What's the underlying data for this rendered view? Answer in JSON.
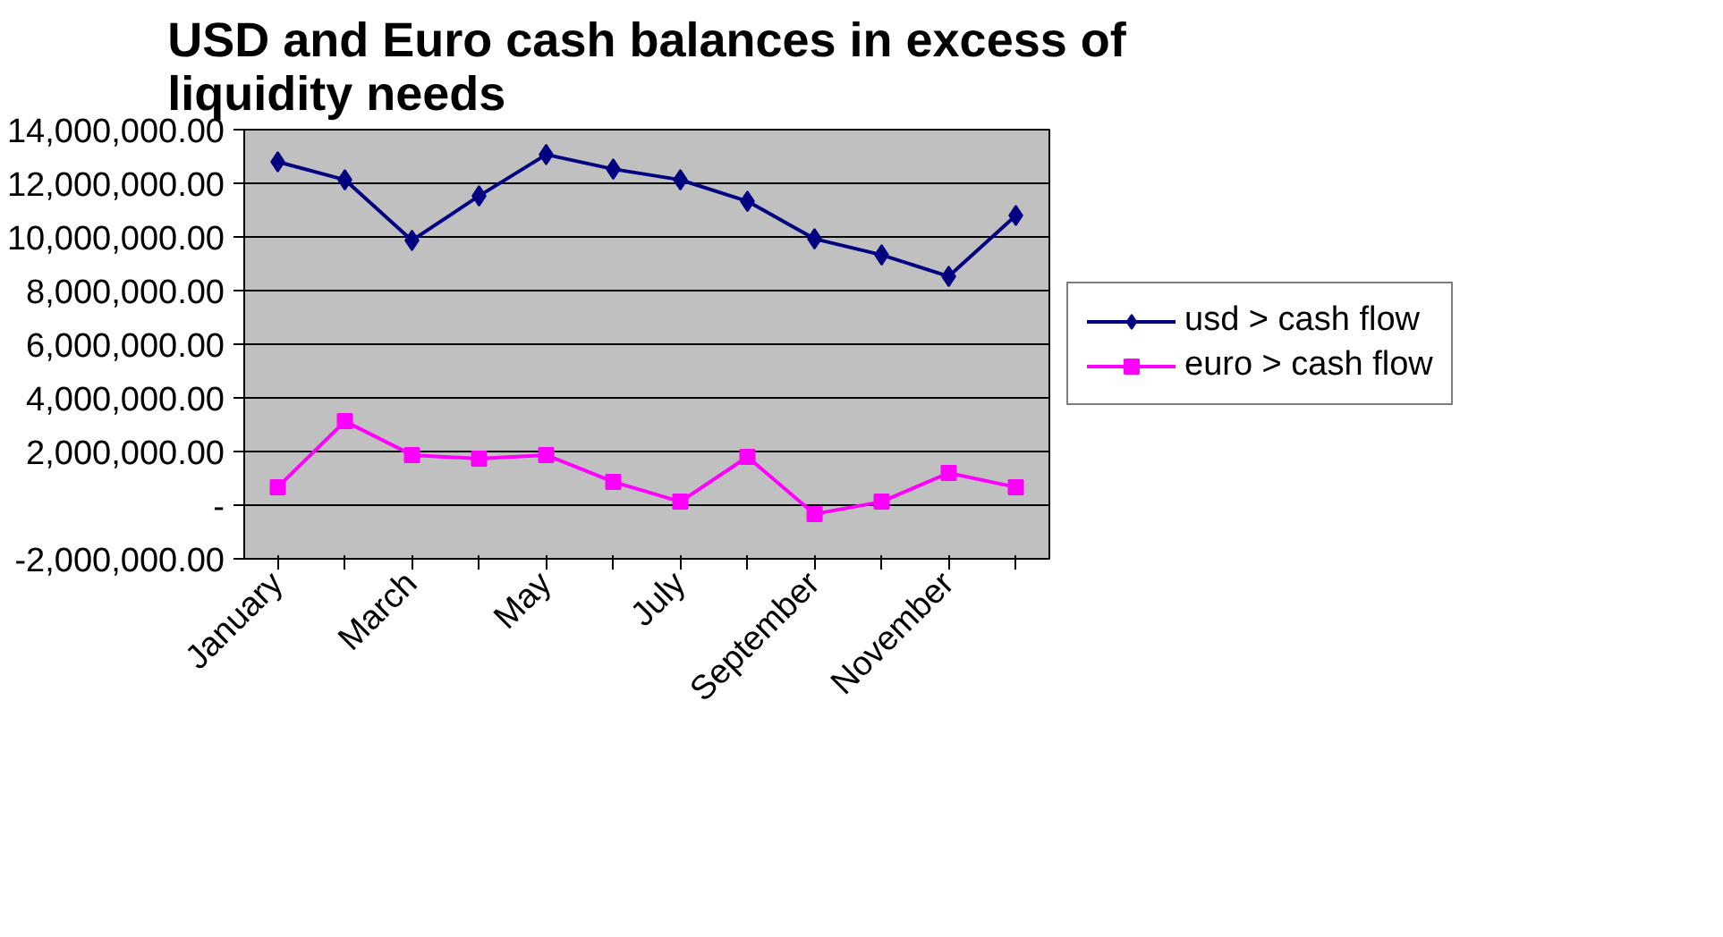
{
  "chart_data": {
    "type": "line",
    "title": "USD and Euro cash balances in excess of liquidity needs",
    "categories": [
      "January",
      null,
      "March",
      null,
      "May",
      null,
      "July",
      null,
      "September",
      null,
      "November",
      null
    ],
    "series": [
      {
        "name": "usd > cash flow",
        "color": "#000080",
        "marker": "diamond",
        "values": [
          12800000,
          12130000,
          9870000,
          11530000,
          13070000,
          12530000,
          12130000,
          11330000,
          9930000,
          9330000,
          8530000,
          10800000
        ]
      },
      {
        "name": "euro > cash flow",
        "color": "#ff00ff",
        "marker": "square",
        "values": [
          670000,
          3130000,
          1870000,
          1730000,
          1870000,
          870000,
          130000,
          1800000,
          -330000,
          130000,
          1200000,
          670000
        ]
      }
    ],
    "ylim": [
      -2000000,
      14000000
    ],
    "yticks": [
      {
        "value": -2000000,
        "label": "-2,000,000.00"
      },
      {
        "value": 0,
        "label": "-"
      },
      {
        "value": 2000000,
        "label": "2,000,000.00"
      },
      {
        "value": 4000000,
        "label": "4,000,000.00"
      },
      {
        "value": 6000000,
        "label": "6,000,000.00"
      },
      {
        "value": 8000000,
        "label": "8,000,000.00"
      },
      {
        "value": 10000000,
        "label": "10,000,000.00"
      },
      {
        "value": 12000000,
        "label": "12,000,000.00"
      },
      {
        "value": 14000000,
        "label": "14,000,000.00"
      }
    ],
    "grid": "y",
    "legend": "right",
    "line_style": "solid"
  }
}
